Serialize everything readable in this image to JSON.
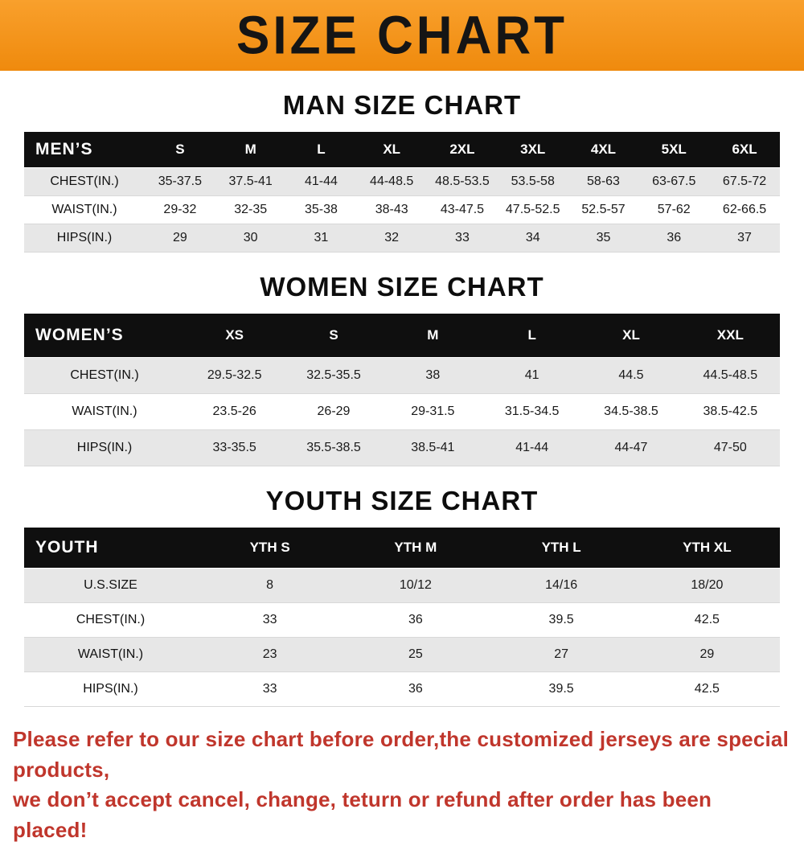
{
  "theme": {
    "banner-top": "#f9a02c",
    "banner-bottom": "#ef8a0d",
    "header-bg": "#0f0f0f",
    "row-gray": "#e7e7e7",
    "footer-red": "#c0362c"
  },
  "banner": {
    "title": "SIZE CHART"
  },
  "sections": [
    {
      "heading": "MAN SIZE CHART",
      "table": {
        "header_label": "MEN’S",
        "columns": [
          "S",
          "M",
          "L",
          "XL",
          "2XL",
          "3XL",
          "4XL",
          "5XL",
          "6XL"
        ],
        "rows": [
          {
            "label": "CHEST(IN.)",
            "values": [
              "35-37.5",
              "37.5-41",
              "41-44",
              "44-48.5",
              "48.5-53.5",
              "53.5-58",
              "58-63",
              "63-67.5",
              "67.5-72"
            ]
          },
          {
            "label": "WAIST(IN.)",
            "values": [
              "29-32",
              "32-35",
              "35-38",
              "38-43",
              "43-47.5",
              "47.5-52.5",
              "52.5-57",
              "57-62",
              "62-66.5"
            ]
          },
          {
            "label": "HIPS(IN.)",
            "values": [
              "29",
              "30",
              "31",
              "32",
              "33",
              "34",
              "35",
              "36",
              "37"
            ]
          }
        ]
      }
    },
    {
      "heading": "WOMEN SIZE CHART",
      "table": {
        "header_label": "WOMEN’S",
        "columns": [
          "XS",
          "S",
          "M",
          "L",
          "XL",
          "XXL"
        ],
        "rows": [
          {
            "label": "CHEST(IN.)",
            "values": [
              "29.5-32.5",
              "32.5-35.5",
              "38",
              "41",
              "44.5",
              "44.5-48.5"
            ]
          },
          {
            "label": "WAIST(IN.)",
            "values": [
              "23.5-26",
              "26-29",
              "29-31.5",
              "31.5-34.5",
              "34.5-38.5",
              "38.5-42.5"
            ]
          },
          {
            "label": "HIPS(IN.)",
            "values": [
              "33-35.5",
              "35.5-38.5",
              "38.5-41",
              "41-44",
              "44-47",
              "47-50"
            ]
          }
        ]
      }
    },
    {
      "heading": "YOUTH SIZE CHART",
      "table": {
        "header_label": "YOUTH",
        "columns": [
          "YTH S",
          "YTH M",
          "YTH L",
          "YTH XL"
        ],
        "rows": [
          {
            "label": "U.S.SIZE",
            "values": [
              "8",
              "10/12",
              "14/16",
              "18/20"
            ]
          },
          {
            "label": "CHEST(IN.)",
            "values": [
              "33",
              "36",
              "39.5",
              "42.5"
            ]
          },
          {
            "label": "WAIST(IN.)",
            "values": [
              "23",
              "25",
              "27",
              "29"
            ]
          },
          {
            "label": "HIPS(IN.)",
            "values": [
              "33",
              "36",
              "39.5",
              "42.5"
            ]
          }
        ]
      }
    }
  ],
  "footer": {
    "line1": "Please refer to our size chart before order,the customized jerseys are special products,",
    "line2": "we don’t accept cancel, change, teturn or refund after order has been placed!"
  }
}
